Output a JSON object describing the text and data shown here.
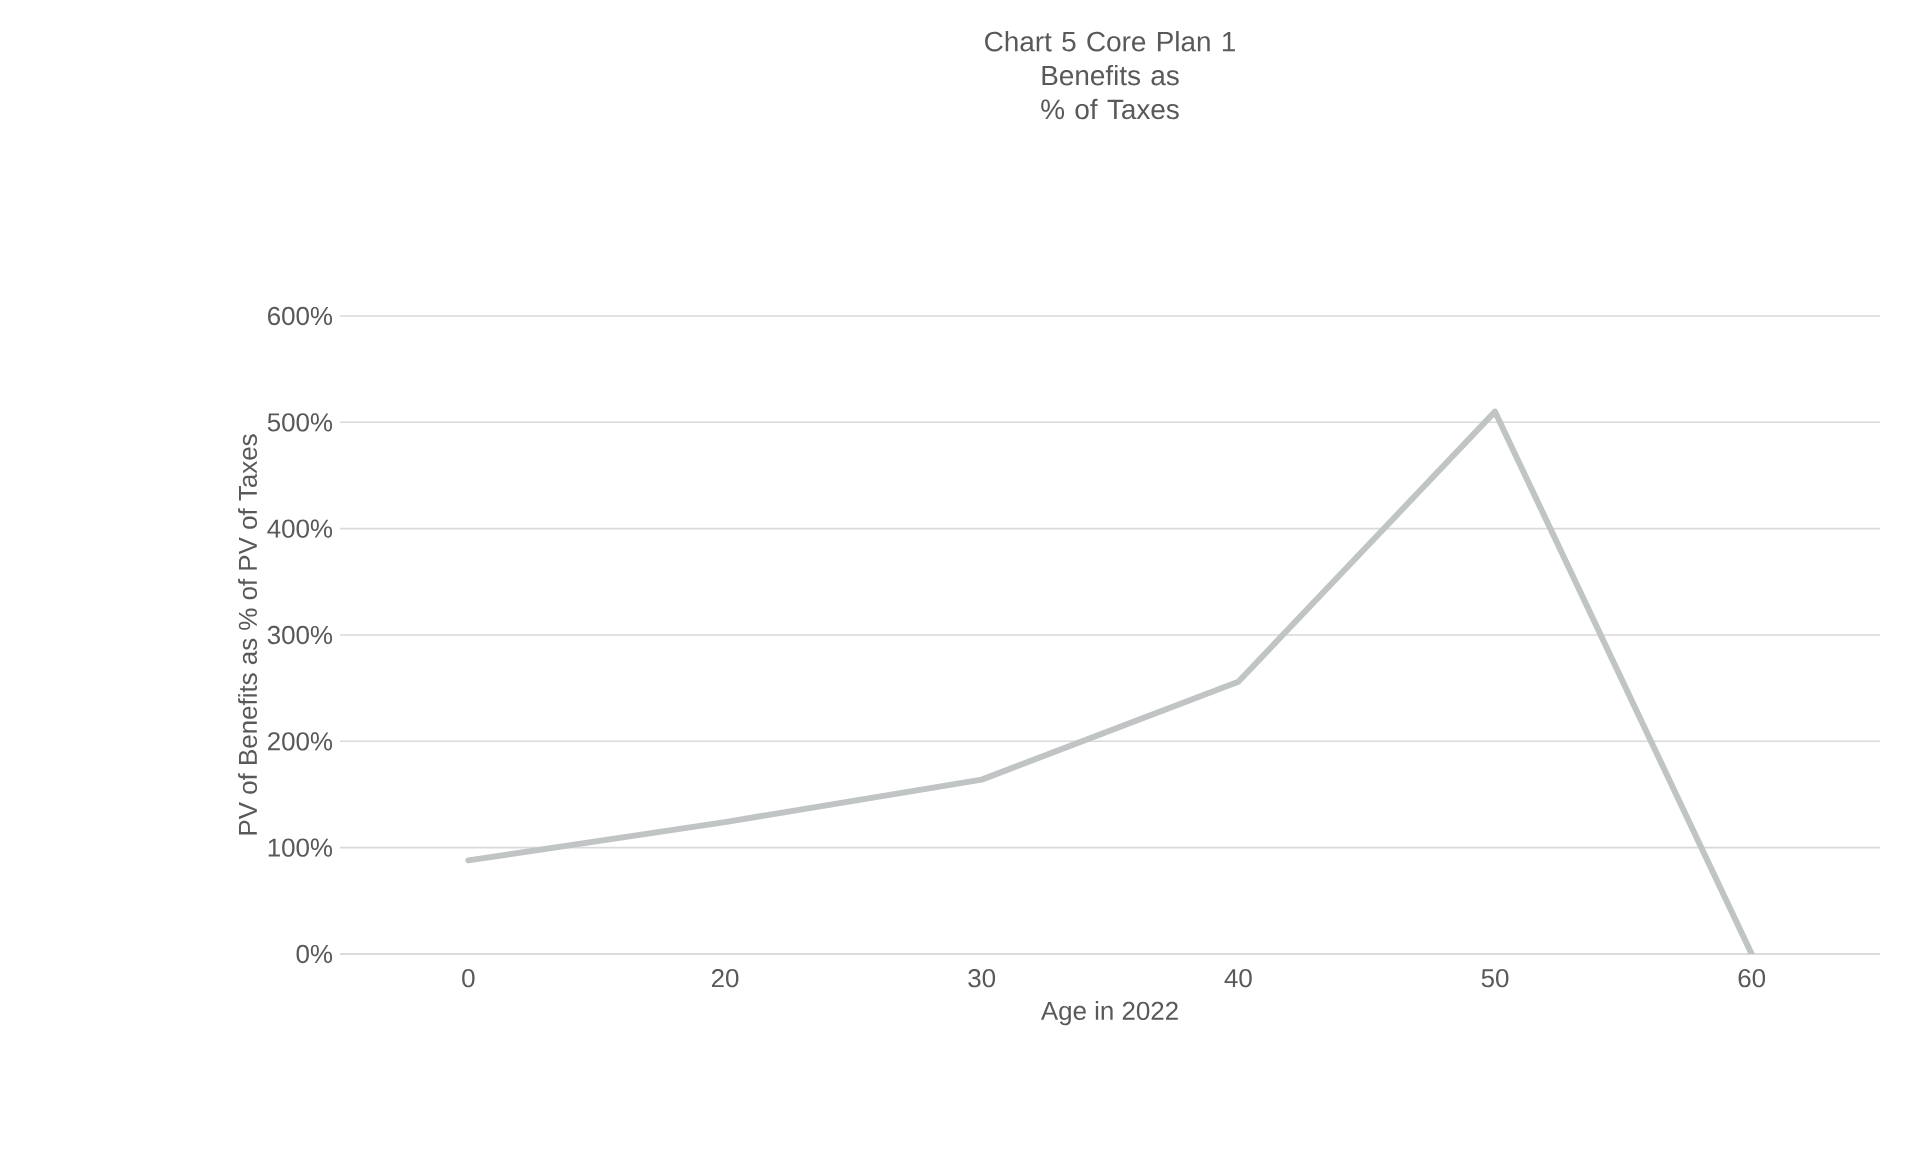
{
  "chart_data": {
    "type": "line",
    "title": "Chart 5 Core Plan 1",
    "subtitle": "Benefits as % of Taxes",
    "xlabel": "Age in 2022",
    "ylabel": "PV of Benefits as % of PV of Taxes",
    "categories": [
      "0",
      "20",
      "30",
      "40",
      "50",
      "60"
    ],
    "series": [
      {
        "color": "#c0c4c4",
        "values": [
          88,
          124,
          164,
          256,
          510,
          0
        ]
      }
    ],
    "ylim": [
      0,
      600
    ],
    "yticks": [
      {
        "value": 0,
        "label": "0%"
      },
      {
        "value": 100,
        "label": "100%"
      },
      {
        "value": 200,
        "label": "200%"
      },
      {
        "value": 300,
        "label": "300%"
      },
      {
        "value": 400,
        "label": "400%"
      },
      {
        "value": 500,
        "label": "500%"
      },
      {
        "value": 600,
        "label": "600%"
      }
    ],
    "grid": "y",
    "marker": "none",
    "line_style": "solid"
  }
}
